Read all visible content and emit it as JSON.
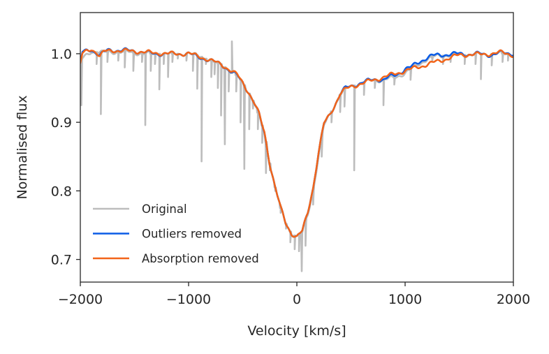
{
  "chart_data": {
    "type": "line",
    "xlabel": "Velocity [km/s]",
    "ylabel": "Normalised flux",
    "xlim": [
      -2000,
      2000
    ],
    "ylim": [
      0.667,
      1.06
    ],
    "xticks": [
      -2000,
      -1000,
      0,
      1000,
      2000
    ],
    "xtick_labels": [
      "−2000",
      "−1000",
      "0",
      "1000",
      "2000"
    ],
    "yticks": [
      0.7,
      0.8,
      0.9,
      1.0
    ],
    "ytick_labels": [
      "0.7",
      "0.8",
      "0.9",
      "1.0"
    ],
    "grid": false,
    "legend_position": "lower-left",
    "series": [
      {
        "name": "Original",
        "color": "#bdbdbd",
        "profile": [
          [
            -2000,
            0.99
          ],
          [
            -1900,
            1.003
          ],
          [
            -1800,
            1.002
          ],
          [
            -1600,
            1.003
          ],
          [
            -1400,
            1.0
          ],
          [
            -1200,
            1.0
          ],
          [
            -1000,
            1.0
          ],
          [
            -900,
            0.997
          ],
          [
            -800,
            0.99
          ],
          [
            -700,
            0.985
          ],
          [
            -600,
            0.972
          ],
          [
            -550,
            0.968
          ],
          [
            -500,
            0.958
          ],
          [
            -450,
            0.945
          ],
          [
            -400,
            0.93
          ],
          [
            -350,
            0.91
          ],
          [
            -300,
            0.885
          ],
          [
            -250,
            0.84
          ],
          [
            -200,
            0.805
          ],
          [
            -150,
            0.775
          ],
          [
            -100,
            0.752
          ],
          [
            -50,
            0.738
          ],
          [
            0,
            0.733
          ],
          [
            50,
            0.74
          ],
          [
            100,
            0.765
          ],
          [
            150,
            0.8
          ],
          [
            200,
            0.85
          ],
          [
            250,
            0.895
          ],
          [
            300,
            0.91
          ],
          [
            350,
            0.925
          ],
          [
            400,
            0.94
          ],
          [
            450,
            0.948
          ],
          [
            500,
            0.952
          ],
          [
            600,
            0.958
          ],
          [
            700,
            0.961
          ],
          [
            800,
            0.962
          ],
          [
            900,
            0.965
          ],
          [
            1000,
            0.972
          ],
          [
            1100,
            0.982
          ],
          [
            1200,
            0.992
          ],
          [
            1300,
            0.997
          ],
          [
            1500,
            0.998
          ],
          [
            1700,
            0.999
          ],
          [
            1900,
            1.0
          ],
          [
            2000,
            1.0
          ]
        ],
        "spikes": [
          [
            -1990,
            0.925
          ],
          [
            -1850,
            0.985
          ],
          [
            -1810,
            0.912
          ],
          [
            -1750,
            0.988
          ],
          [
            -1650,
            0.99
          ],
          [
            -1590,
            0.98
          ],
          [
            -1510,
            0.975
          ],
          [
            -1430,
            0.988
          ],
          [
            -1400,
            0.896
          ],
          [
            -1350,
            0.975
          ],
          [
            -1310,
            0.985
          ],
          [
            -1270,
            0.948
          ],
          [
            -1230,
            0.985
          ],
          [
            -1190,
            0.966
          ],
          [
            -1150,
            0.988
          ],
          [
            -1100,
            0.993
          ],
          [
            -1020,
            0.99
          ],
          [
            -960,
            0.975
          ],
          [
            -920,
            0.949
          ],
          [
            -880,
            0.843
          ],
          [
            -840,
            0.985
          ],
          [
            -790,
            0.966
          ],
          [
            -760,
            0.97
          ],
          [
            -730,
            0.95
          ],
          [
            -700,
            0.91
          ],
          [
            -665,
            0.868
          ],
          [
            -630,
            0.945
          ],
          [
            -600,
            1.018
          ],
          [
            -560,
            0.945
          ],
          [
            -520,
            0.9
          ],
          [
            -485,
            0.832
          ],
          [
            -440,
            0.89
          ],
          [
            -405,
            0.92
          ],
          [
            -360,
            0.89
          ],
          [
            -320,
            0.87
          ],
          [
            -285,
            0.826
          ],
          [
            -250,
            0.83
          ],
          [
            -200,
            0.8
          ],
          [
            -150,
            0.768
          ],
          [
            -100,
            0.745
          ],
          [
            -60,
            0.725
          ],
          [
            -20,
            0.715
          ],
          [
            20,
            0.712
          ],
          [
            45,
            0.683
          ],
          [
            80,
            0.72
          ],
          [
            150,
            0.78
          ],
          [
            230,
            0.85
          ],
          [
            320,
            0.9
          ],
          [
            400,
            0.915
          ],
          [
            440,
            0.923
          ],
          [
            530,
            0.83
          ],
          [
            620,
            0.94
          ],
          [
            720,
            0.95
          ],
          [
            800,
            0.925
          ],
          [
            900,
            0.955
          ],
          [
            1050,
            0.962
          ],
          [
            1250,
            0.99
          ],
          [
            1350,
            0.985
          ],
          [
            1420,
            0.988
          ],
          [
            1550,
            0.985
          ],
          [
            1650,
            0.985
          ],
          [
            1700,
            0.963
          ],
          [
            1800,
            0.983
          ],
          [
            1900,
            0.988
          ],
          [
            1950,
            0.99
          ]
        ]
      },
      {
        "name": "Outliers removed",
        "color": "#0a5ce6",
        "profile": [
          [
            -2000,
            0.988
          ],
          [
            -1980,
            1.002
          ],
          [
            -1900,
            1.006
          ],
          [
            -1820,
            0.998
          ],
          [
            -1750,
            1.005
          ],
          [
            -1600,
            1.005
          ],
          [
            -1500,
            1.004
          ],
          [
            -1400,
            1.002
          ],
          [
            -1300,
            1.0
          ],
          [
            -1200,
            1.0
          ],
          [
            -1100,
            1.0
          ],
          [
            -1000,
            1.0
          ],
          [
            -900,
            0.995
          ],
          [
            -800,
            0.99
          ],
          [
            -700,
            0.985
          ],
          [
            -600,
            0.973
          ],
          [
            -550,
            0.968
          ],
          [
            -500,
            0.958
          ],
          [
            -450,
            0.945
          ],
          [
            -400,
            0.93
          ],
          [
            -350,
            0.912
          ],
          [
            -300,
            0.885
          ],
          [
            -250,
            0.84
          ],
          [
            -200,
            0.805
          ],
          [
            -150,
            0.775
          ],
          [
            -100,
            0.752
          ],
          [
            -50,
            0.738
          ],
          [
            0,
            0.733
          ],
          [
            50,
            0.741
          ],
          [
            100,
            0.768
          ],
          [
            150,
            0.805
          ],
          [
            200,
            0.855
          ],
          [
            250,
            0.898
          ],
          [
            300,
            0.91
          ],
          [
            350,
            0.925
          ],
          [
            400,
            0.942
          ],
          [
            450,
            0.95
          ],
          [
            500,
            0.952
          ],
          [
            550,
            0.955
          ],
          [
            600,
            0.958
          ],
          [
            650,
            0.96
          ],
          [
            700,
            0.962
          ],
          [
            750,
            0.963
          ],
          [
            800,
            0.962
          ],
          [
            850,
            0.966
          ],
          [
            900,
            0.968
          ],
          [
            950,
            0.972
          ],
          [
            1000,
            0.978
          ],
          [
            1050,
            0.98
          ],
          [
            1100,
            0.985
          ],
          [
            1150,
            0.99
          ],
          [
            1200,
            0.994
          ],
          [
            1250,
            0.997
          ],
          [
            1300,
            0.998
          ],
          [
            1400,
            0.999
          ],
          [
            1500,
            1.0
          ],
          [
            1600,
            0.999
          ],
          [
            1700,
            1.0
          ],
          [
            1800,
            0.998
          ],
          [
            1900,
            1.002
          ],
          [
            2000,
            1.0
          ]
        ]
      },
      {
        "name": "Absorption removed",
        "color": "#f26419",
        "profile": [
          [
            -2000,
            0.985
          ],
          [
            -1980,
            1.0
          ],
          [
            -1900,
            1.007
          ],
          [
            -1850,
            1.002
          ],
          [
            -1820,
            0.996
          ],
          [
            -1780,
            1.003
          ],
          [
            -1700,
            1.005
          ],
          [
            -1600,
            1.004
          ],
          [
            -1500,
            1.004
          ],
          [
            -1400,
            1.002
          ],
          [
            -1300,
            1.001
          ],
          [
            -1200,
            1.0
          ],
          [
            -1100,
            1.0
          ],
          [
            -1000,
            1.0
          ],
          [
            -900,
            0.996
          ],
          [
            -800,
            0.99
          ],
          [
            -700,
            0.985
          ],
          [
            -600,
            0.974
          ],
          [
            -550,
            0.969
          ],
          [
            -500,
            0.958
          ],
          [
            -450,
            0.945
          ],
          [
            -400,
            0.93
          ],
          [
            -350,
            0.912
          ],
          [
            -300,
            0.886
          ],
          [
            -250,
            0.84
          ],
          [
            -200,
            0.805
          ],
          [
            -150,
            0.775
          ],
          [
            -100,
            0.752
          ],
          [
            -50,
            0.738
          ],
          [
            0,
            0.733
          ],
          [
            50,
            0.741
          ],
          [
            100,
            0.768
          ],
          [
            150,
            0.805
          ],
          [
            200,
            0.855
          ],
          [
            250,
            0.898
          ],
          [
            300,
            0.91
          ],
          [
            350,
            0.925
          ],
          [
            400,
            0.942
          ],
          [
            450,
            0.948
          ],
          [
            500,
            0.952
          ],
          [
            1500,
            0.998
          ],
          [
            1600,
            0.999
          ],
          [
            1700,
            0.999
          ],
          [
            1800,
            1.0
          ],
          [
            1900,
            1.002
          ],
          [
            2000,
            0.998
          ]
        ]
      }
    ]
  }
}
